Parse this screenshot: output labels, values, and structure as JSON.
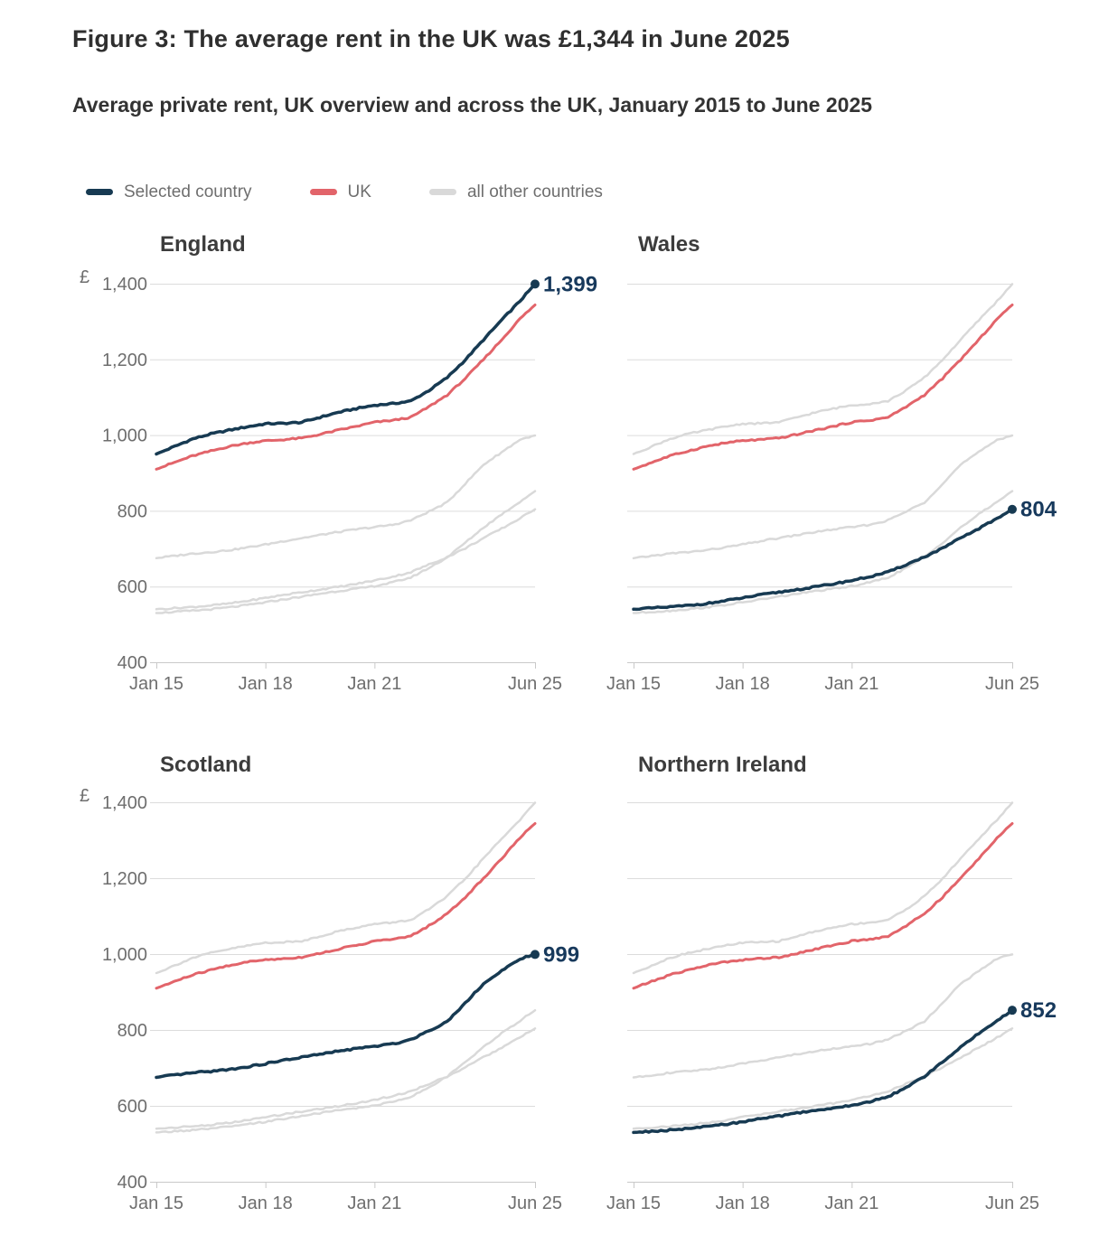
{
  "title": "Figure 3: The average rent in the UK was £1,344 in June 2025",
  "subtitle": "Average private rent, UK overview and across the UK, January 2015 to June 2025",
  "legend": [
    {
      "label": "Selected country",
      "color": "#173a52"
    },
    {
      "label": "UK",
      "color": "#e2646a"
    },
    {
      "label": "all other countries",
      "color": "#d9d9d9"
    }
  ],
  "chart_data": {
    "type": "line",
    "unit_symbol": "£",
    "ylim": [
      400,
      1400
    ],
    "y_ticks": [
      400,
      600,
      800,
      1000,
      1200,
      1400
    ],
    "y_tick_labels": [
      "400",
      "600",
      "800",
      "1,000",
      "1,200",
      "1,400"
    ],
    "x_range_months": 125,
    "x_tick_months": [
      0,
      36,
      72,
      125
    ],
    "x_tick_labels": [
      "Jan 15",
      "Jan 18",
      "Jan 21",
      "Jun 25"
    ],
    "sample_months": [
      0,
      6,
      12,
      18,
      24,
      30,
      36,
      42,
      48,
      54,
      60,
      66,
      72,
      78,
      84,
      90,
      96,
      102,
      108,
      114,
      120,
      125
    ],
    "series": {
      "England": [
        950,
        970,
        990,
        1003,
        1013,
        1022,
        1030,
        1031,
        1034,
        1047,
        1060,
        1070,
        1079,
        1083,
        1090,
        1118,
        1152,
        1199,
        1252,
        1304,
        1354,
        1399
      ],
      "UK": [
        910,
        928,
        945,
        958,
        970,
        979,
        985,
        988,
        992,
        1002,
        1013,
        1023,
        1034,
        1039,
        1047,
        1075,
        1106,
        1150,
        1200,
        1252,
        1307,
        1344
      ],
      "Scotland": [
        675,
        681,
        687,
        691,
        696,
        703,
        711,
        720,
        728,
        736,
        744,
        751,
        757,
        763,
        775,
        798,
        822,
        872,
        922,
        955,
        988,
        999
      ],
      "Wales": [
        540,
        543,
        546,
        550,
        555,
        562,
        570,
        578,
        585,
        592,
        599,
        607,
        616,
        626,
        638,
        658,
        678,
        701,
        728,
        753,
        780,
        804
      ],
      "Northern Ireland": [
        530,
        533,
        536,
        540,
        545,
        551,
        558,
        566,
        573,
        581,
        588,
        594,
        601,
        611,
        624,
        649,
        677,
        716,
        756,
        791,
        824,
        852
      ]
    },
    "panels": [
      {
        "title": "England",
        "selected": "England",
        "end_value": 1399,
        "end_label": "1,399"
      },
      {
        "title": "Wales",
        "selected": "Wales",
        "end_value": 804,
        "end_label": "804"
      },
      {
        "title": "Scotland",
        "selected": "Scotland",
        "end_value": 999,
        "end_label": "999"
      },
      {
        "title": "Northern Ireland",
        "selected": "Northern Ireland",
        "end_value": 852,
        "end_label": "852"
      }
    ],
    "colors": {
      "selected": "#173a52",
      "uk": "#e2646a",
      "other": "#d9d9d9",
      "gridline": "#dcdcdc",
      "axis": "#c9c9c9",
      "tick_label": "#6e6e6e",
      "end_label": "#17395c"
    }
  }
}
